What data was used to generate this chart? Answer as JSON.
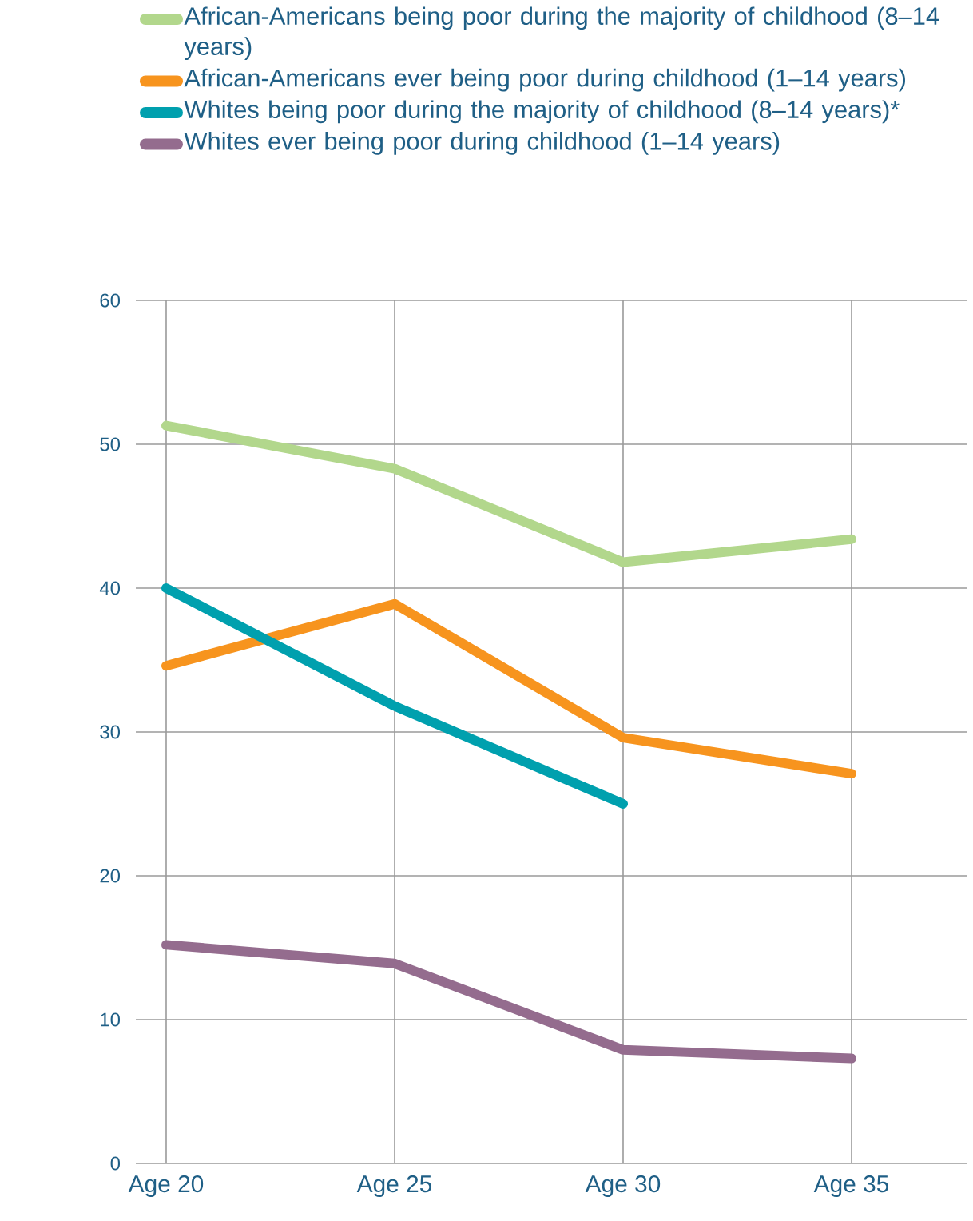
{
  "chart_data": {
    "type": "line",
    "categories": [
      "Age 20",
      "Age 25",
      "Age 30",
      "Age 35"
    ],
    "series": [
      {
        "name": "African-Americans being poor during the majority of childhood (8–14 years)",
        "color": "#b2d78c",
        "values": [
          51.3,
          48.3,
          41.8,
          43.4
        ]
      },
      {
        "name": "African-Americans ever being poor during childhood (1–14 years)",
        "color": "#f7941e",
        "values": [
          34.6,
          38.9,
          29.6,
          27.1
        ]
      },
      {
        "name": "Whites being poor during the majority of childhood (8–14 years)*",
        "color": "#00a0ae",
        "values": [
          40,
          31.8,
          25,
          null
        ]
      },
      {
        "name": "Whites ever being poor during childhood (1–14 years)",
        "color": "#946c8e",
        "values": [
          15.2,
          13.9,
          7.9,
          7.3
        ]
      }
    ],
    "ylim": [
      0,
      60
    ],
    "yticks": [
      0,
      10,
      20,
      30,
      40,
      50,
      60
    ],
    "grid": true,
    "legend": "top",
    "marker": "none",
    "line_style": "solid"
  }
}
